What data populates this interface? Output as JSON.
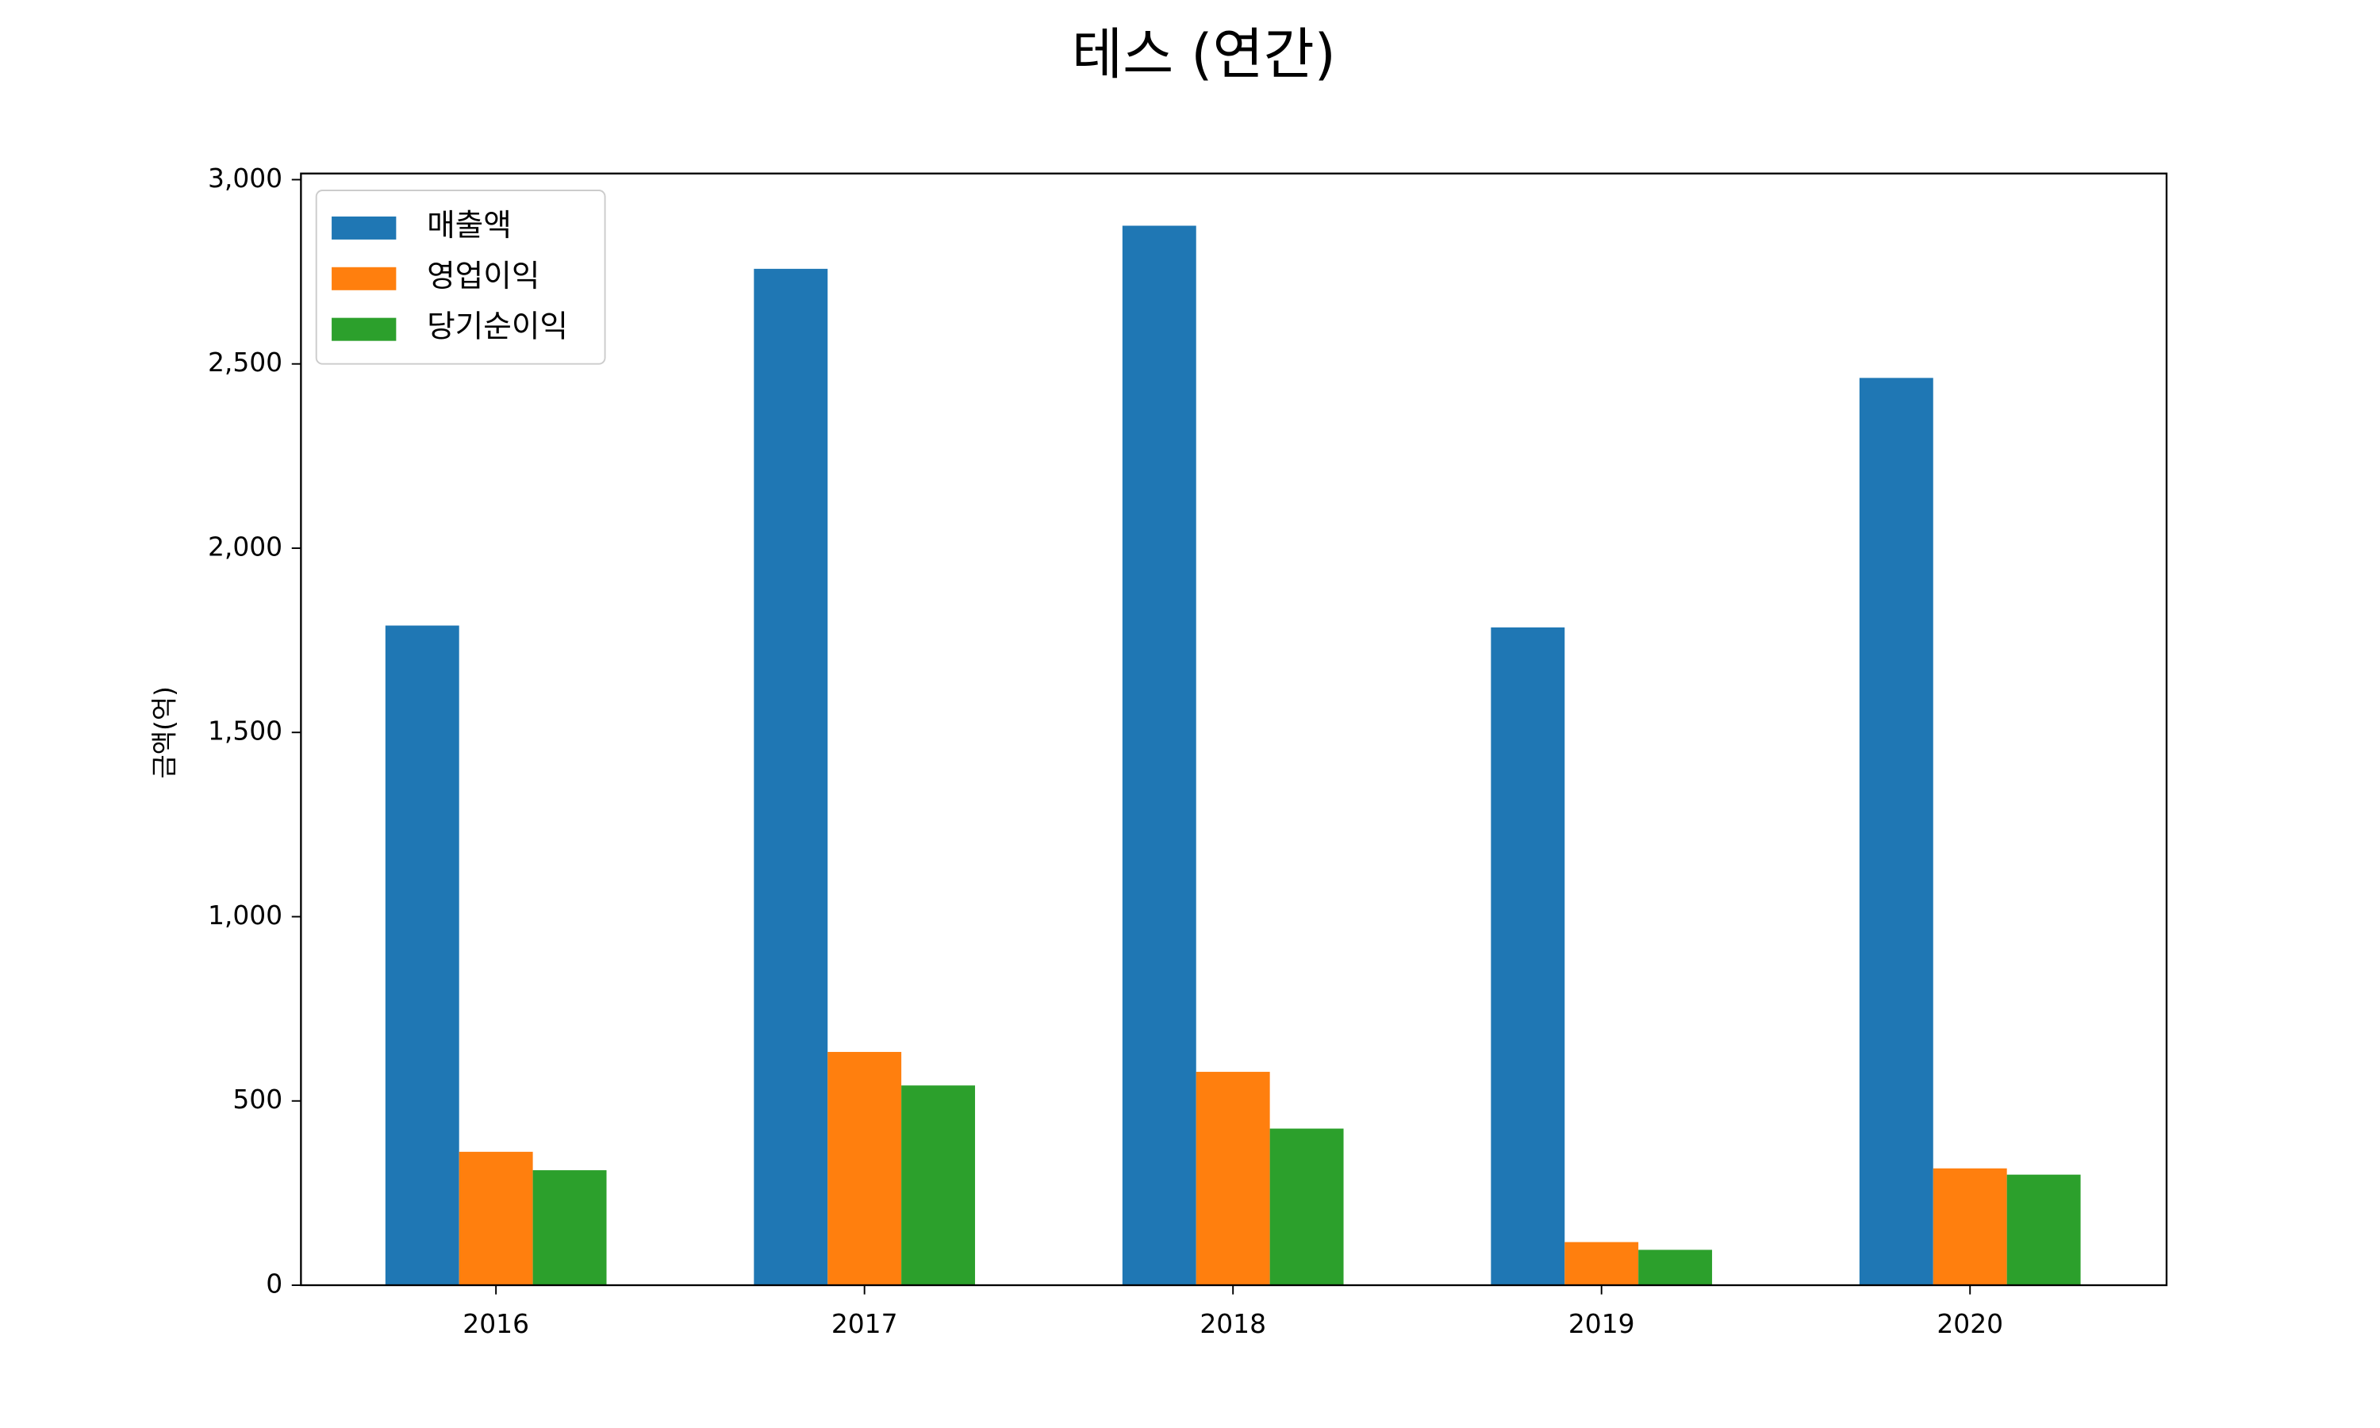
{
  "chart_data": {
    "type": "bar",
    "title": "테스 (연간)",
    "y_label": "금액(억)",
    "categories": [
      "2016",
      "2017",
      "2018",
      "2019",
      "2020"
    ],
    "series": [
      {
        "name": "매출액",
        "color": "#1f77b4",
        "values": [
          1790,
          2758,
          2875,
          1785,
          2462
        ]
      },
      {
        "name": "영업이익",
        "color": "#ff7f0e",
        "values": [
          362,
          633,
          579,
          117,
          317
        ]
      },
      {
        "name": "당기순이익",
        "color": "#2ca02c",
        "values": [
          312,
          542,
          425,
          96,
          300
        ]
      }
    ],
    "ylim": [
      0,
      3000
    ],
    "yticks": [
      0,
      500,
      {
        "value": 1000,
        "label": "1,000"
      },
      {
        "value": 1500,
        "label": "1,500"
      },
      {
        "value": 2000,
        "label": "2,000"
      },
      {
        "value": 2500,
        "label": "2,500"
      },
      {
        "value": 3000,
        "label": "3,000"
      }
    ],
    "legend": "upper-left",
    "grid": false
  }
}
